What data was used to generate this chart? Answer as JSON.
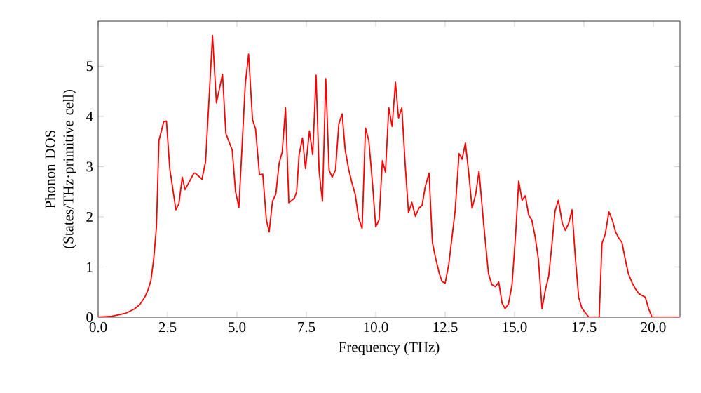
{
  "chart_data": {
    "type": "line",
    "xlabel": "Frequency (THz)",
    "ylabel": "Phonon DOS (States/THz·primitive cell)",
    "xlim": [
      0,
      20.96
    ],
    "ylim": [
      0,
      5.9
    ],
    "xticks": [
      {
        "value": 0,
        "label": "0.0"
      },
      {
        "value": 2.5,
        "label": "2.5"
      },
      {
        "value": 5,
        "label": "5.0"
      },
      {
        "value": 7.5,
        "label": "7.5"
      },
      {
        "value": 10,
        "label": "10.0"
      },
      {
        "value": 12.5,
        "label": "12.5"
      },
      {
        "value": 15,
        "label": "15.0"
      },
      {
        "value": 17.5,
        "label": "17.5"
      },
      {
        "value": 20,
        "label": "20.0"
      }
    ],
    "yticks": [
      0,
      1,
      2,
      3,
      4,
      5
    ],
    "grid": false,
    "marker": "none",
    "line_style": "solid",
    "series": [
      {
        "color": "#ff0000",
        "x": [
          0,
          0.5,
          1.0,
          1.3,
          1.5,
          1.7,
          1.8,
          1.9,
          2.0,
          2.1,
          2.19,
          2.36,
          2.46,
          2.58,
          2.8,
          2.91,
          3.03,
          3.13,
          3.45,
          3.5,
          3.74,
          3.87,
          4.12,
          4.26,
          4.48,
          4.6,
          4.83,
          4.95,
          5.07,
          5.3,
          5.42,
          5.56,
          5.67,
          5.81,
          5.93,
          6.06,
          6.16,
          6.28,
          6.4,
          6.52,
          6.63,
          6.75,
          6.87,
          7.07,
          7.15,
          7.24,
          7.36,
          7.47,
          7.61,
          7.73,
          7.85,
          7.96,
          8.08,
          8.2,
          8.32,
          8.43,
          8.55,
          8.67,
          8.79,
          8.9,
          9.02,
          9.14,
          9.26,
          9.38,
          9.51,
          9.63,
          9.75,
          9.88,
          10.0,
          10.12,
          10.24,
          10.35,
          10.47,
          10.59,
          10.71,
          10.82,
          10.94,
          11.06,
          11.18,
          11.3,
          11.43,
          11.55,
          11.67,
          11.78,
          11.92,
          12.04,
          12.15,
          12.29,
          12.39,
          12.5,
          12.63,
          12.74,
          12.86,
          13.0,
          13.11,
          13.23,
          13.35,
          13.47,
          13.6,
          13.72,
          13.89,
          14.06,
          14.18,
          14.31,
          14.43,
          14.55,
          14.66,
          14.78,
          14.91,
          15.04,
          15.15,
          15.27,
          15.39,
          15.51,
          15.62,
          15.74,
          15.86,
          15.99,
          16.11,
          16.23,
          16.35,
          16.46,
          16.58,
          16.72,
          16.83,
          16.95,
          17.07,
          17.19,
          17.31,
          17.42,
          17.56,
          17.68,
          18.05,
          18.15,
          18.27,
          18.4,
          18.52,
          18.64,
          18.75,
          18.87,
          18.99,
          19.1,
          19.24,
          19.36,
          19.48,
          19.6,
          19.71,
          19.83,
          19.95,
          20.96
        ],
        "values": [
          0,
          0.02,
          0.08,
          0.16,
          0.25,
          0.42,
          0.55,
          0.73,
          1.15,
          1.8,
          3.52,
          3.89,
          3.91,
          2.96,
          2.14,
          2.26,
          2.79,
          2.54,
          2.87,
          2.87,
          2.75,
          3.1,
          5.61,
          4.27,
          4.84,
          3.66,
          3.33,
          2.5,
          2.19,
          4.64,
          5.24,
          3.94,
          3.75,
          2.84,
          2.85,
          1.94,
          1.7,
          2.31,
          2.45,
          3.07,
          3.29,
          4.17,
          2.28,
          2.37,
          2.5,
          3.24,
          3.57,
          2.96,
          3.71,
          3.24,
          4.82,
          2.91,
          2.31,
          4.75,
          2.93,
          2.79,
          2.93,
          3.85,
          4.05,
          3.33,
          2.96,
          2.68,
          2.45,
          1.98,
          1.77,
          3.77,
          3.52,
          2.68,
          1.8,
          1.94,
          3.12,
          2.89,
          4.17,
          3.8,
          4.68,
          3.97,
          4.17,
          3.05,
          2.08,
          2.29,
          2.01,
          2.17,
          2.23,
          2.59,
          2.87,
          1.49,
          1.19,
          0.87,
          0.71,
          0.68,
          1.05,
          1.56,
          2.12,
          3.26,
          3.15,
          3.47,
          2.87,
          2.17,
          2.45,
          2.91,
          1.84,
          0.87,
          0.65,
          0.61,
          0.7,
          0.28,
          0.17,
          0.26,
          0.65,
          1.66,
          2.71,
          2.33,
          2.42,
          2.03,
          1.94,
          1.61,
          1.15,
          0.17,
          0.54,
          0.82,
          1.47,
          2.12,
          2.33,
          1.87,
          1.73,
          1.87,
          2.14,
          1.19,
          0.4,
          0.19,
          0.08,
          0,
          0,
          1.47,
          1.66,
          2.1,
          1.94,
          1.7,
          1.58,
          1.49,
          1.15,
          0.87,
          0.68,
          0.56,
          0.47,
          0.43,
          0.4,
          0.17,
          0,
          0
        ]
      }
    ]
  }
}
